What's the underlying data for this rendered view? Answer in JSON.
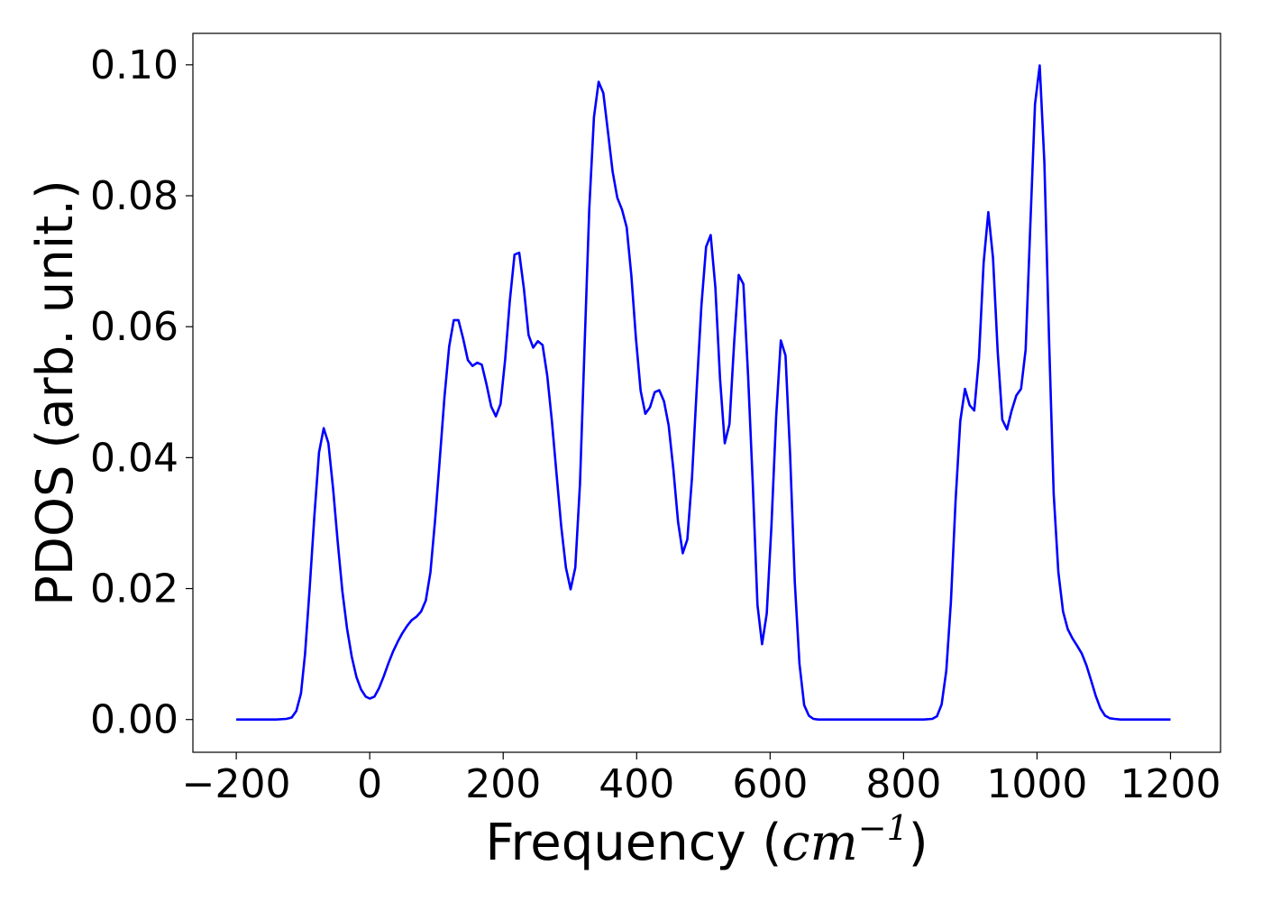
{
  "chart_data": {
    "type": "line",
    "title": "",
    "xlabel_prefix": "Frequency (",
    "xlabel_math": "cm",
    "xlabel_sup": "−1",
    "xlabel_suffix": ")",
    "ylabel": "PDOS (arb. unit.)",
    "xlim": [
      -265,
      1275
    ],
    "ylim": [
      -0.005,
      0.1048
    ],
    "xticks": [
      -200,
      0,
      200,
      400,
      600,
      800,
      1000,
      1200
    ],
    "xtick_labels": [
      "−200",
      "0",
      "200",
      "400",
      "600",
      "800",
      "1000",
      "1200"
    ],
    "yticks": [
      0,
      0.02,
      0.04,
      0.06,
      0.08,
      0.1
    ],
    "ytick_labels": [
      "0.00",
      "0.02",
      "0.04",
      "0.06",
      "0.08",
      "0.10"
    ],
    "grid": false,
    "line_color": "#0000ff",
    "series": [
      {
        "x": [
          -200,
          -180,
          -160,
          -140,
          -125,
          -117,
          -110,
          -103,
          -97,
          -90,
          -83,
          -76,
          -69,
          -62,
          -55,
          -48,
          -41,
          -34,
          -27,
          -20,
          -13,
          -6,
          0,
          7,
          14,
          21,
          28,
          35,
          42,
          49,
          56,
          63,
          70,
          77,
          84,
          91,
          98,
          105,
          112,
          119,
          126,
          133,
          140,
          147,
          154,
          161,
          168,
          175,
          182,
          189,
          196,
          203,
          210,
          217,
          224,
          231,
          238,
          245,
          252,
          259,
          266,
          273,
          280,
          287,
          294,
          301,
          308,
          315,
          322,
          329,
          336,
          343,
          350,
          357,
          364,
          371,
          378,
          385,
          392,
          399,
          406,
          413,
          420,
          427,
          434,
          441,
          448,
          455,
          462,
          469,
          476,
          483,
          490,
          497,
          504,
          511,
          518,
          525,
          532,
          539,
          546,
          553,
          560,
          567,
          574,
          581,
          588,
          595,
          602,
          609,
          616,
          623,
          630,
          637,
          644,
          651,
          658,
          665,
          672,
          680,
          700,
          750,
          800,
          830,
          843,
          850,
          857,
          864,
          871,
          878,
          885,
          892,
          899,
          906,
          913,
          920,
          927,
          934,
          941,
          948,
          955,
          962,
          969,
          976,
          983,
          990,
          997,
          1004,
          1011,
          1018,
          1025,
          1032,
          1039,
          1046,
          1053,
          1060,
          1067,
          1074,
          1081,
          1088,
          1095,
          1102,
          1109,
          1116,
          1125,
          1150,
          1200
        ],
        "y": [
          0,
          0,
          0,
          0,
          0.0001,
          0.0003,
          0.0013,
          0.004,
          0.01,
          0.02,
          0.031,
          0.0408,
          0.0445,
          0.0422,
          0.0353,
          0.0272,
          0.0196,
          0.0139,
          0.0096,
          0.0065,
          0.0046,
          0.0035,
          0.0032,
          0.0035,
          0.0048,
          0.0066,
          0.0086,
          0.0104,
          0.0119,
          0.0132,
          0.0143,
          0.0152,
          0.0157,
          0.0165,
          0.0182,
          0.0225,
          0.0305,
          0.0398,
          0.0493,
          0.057,
          0.061,
          0.061,
          0.0582,
          0.0549,
          0.054,
          0.0545,
          0.0542,
          0.0512,
          0.0478,
          0.0463,
          0.0482,
          0.055,
          0.064,
          0.071,
          0.0713,
          0.0658,
          0.0587,
          0.0568,
          0.0578,
          0.0572,
          0.0525,
          0.0455,
          0.0375,
          0.0295,
          0.0232,
          0.0199,
          0.0232,
          0.036,
          0.057,
          0.078,
          0.092,
          0.0974,
          0.0957,
          0.0898,
          0.0837,
          0.0797,
          0.0779,
          0.0752,
          0.0678,
          0.0582,
          0.0502,
          0.0467,
          0.0477,
          0.05,
          0.0503,
          0.0486,
          0.0449,
          0.0382,
          0.0302,
          0.0254,
          0.0275,
          0.037,
          0.0505,
          0.0632,
          0.0722,
          0.074,
          0.066,
          0.052,
          0.0422,
          0.0451,
          0.0575,
          0.0679,
          0.0665,
          0.0525,
          0.036,
          0.0175,
          0.0115,
          0.0162,
          0.0296,
          0.0462,
          0.0579,
          0.0556,
          0.0405,
          0.021,
          0.0085,
          0.0022,
          0.0006,
          0.0001,
          0,
          0,
          0,
          0,
          0,
          0,
          0.0001,
          0.0005,
          0.0023,
          0.0075,
          0.018,
          0.0335,
          0.0456,
          0.0505,
          0.048,
          0.0472,
          0.0552,
          0.0698,
          0.0775,
          0.0705,
          0.0562,
          0.0458,
          0.0443,
          0.0472,
          0.0495,
          0.0505,
          0.0565,
          0.0755,
          0.094,
          0.0999,
          0.085,
          0.058,
          0.0345,
          0.0225,
          0.0165,
          0.0138,
          0.0124,
          0.0113,
          0.0101,
          0.0083,
          0.006,
          0.0036,
          0.0017,
          0.0006,
          0.0002,
          0.0001,
          0,
          0,
          0
        ]
      }
    ]
  }
}
